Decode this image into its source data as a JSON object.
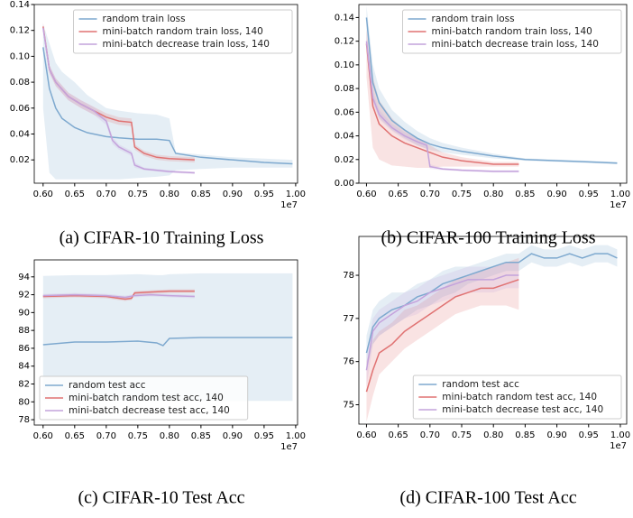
{
  "chart_data": [
    {
      "type": "line",
      "caption": "(a) CIFAR-10 Training Loss",
      "offset_label": "1e7",
      "legend": "upper right",
      "xlim": [
        0.586,
        1.003
      ],
      "ylim": [
        0.002,
        0.14
      ],
      "xticks": [
        {
          "value": 0.6,
          "label": "0.60"
        },
        {
          "value": 0.65,
          "label": "0.65"
        },
        {
          "value": 0.7,
          "label": "0.70"
        },
        {
          "value": 0.75,
          "label": "0.75"
        },
        {
          "value": 0.8,
          "label": "0.80"
        },
        {
          "value": 0.85,
          "label": "0.85"
        },
        {
          "value": 0.9,
          "label": "0.90"
        },
        {
          "value": 0.95,
          "label": "0.95"
        },
        {
          "value": 1.0,
          "label": "1.00"
        }
      ],
      "yticks": [
        0.02,
        0.04,
        0.06,
        0.08,
        {
          "value": 0.1,
          "label": "0.10"
        },
        0.12,
        0.14
      ],
      "series": [
        {
          "name": "random train loss",
          "color": "#7ea9cf",
          "x": [
            0.6,
            0.61,
            0.62,
            0.63,
            0.65,
            0.67,
            0.7,
            0.72,
            0.75,
            0.78,
            0.8,
            0.81,
            0.85,
            0.9,
            0.95,
            0.995
          ],
          "values": [
            0.107,
            0.075,
            0.06,
            0.052,
            0.045,
            0.041,
            0.038,
            0.037,
            0.036,
            0.036,
            0.035,
            0.025,
            0.022,
            0.02,
            0.018,
            0.017
          ],
          "upper": [
            0.125,
            0.11,
            0.095,
            0.088,
            0.08,
            0.07,
            0.06,
            0.058,
            0.056,
            0.055,
            0.052,
            0.026,
            0.024,
            0.022,
            0.021,
            0.02
          ],
          "lower": [
            0.06,
            0.01,
            0.005,
            0.005,
            0.005,
            0.005,
            0.005,
            0.005,
            0.006,
            0.007,
            0.008,
            0.012,
            0.013,
            0.014,
            0.014,
            0.014
          ]
        },
        {
          "name": "mini-batch random train loss, 140",
          "color": "#e07272",
          "x": [
            0.6,
            0.61,
            0.62,
            0.64,
            0.66,
            0.68,
            0.7,
            0.72,
            0.74,
            0.745,
            0.76,
            0.78,
            0.8,
            0.84
          ],
          "values": [
            0.123,
            0.09,
            0.08,
            0.069,
            0.063,
            0.058,
            0.053,
            0.05,
            0.049,
            0.03,
            0.025,
            0.022,
            0.021,
            0.02
          ],
          "upper": [
            0.126,
            0.093,
            0.083,
            0.072,
            0.066,
            0.061,
            0.056,
            0.053,
            0.052,
            0.032,
            0.027,
            0.024,
            0.023,
            0.022
          ],
          "lower": [
            0.12,
            0.087,
            0.077,
            0.066,
            0.06,
            0.055,
            0.05,
            0.047,
            0.046,
            0.028,
            0.023,
            0.02,
            0.019,
            0.018
          ]
        },
        {
          "name": "mini-batch decrease train loss, 140",
          "color": "#c4a3dc",
          "x": [
            0.6,
            0.61,
            0.62,
            0.64,
            0.66,
            0.68,
            0.7,
            0.71,
            0.72,
            0.74,
            0.745,
            0.76,
            0.8,
            0.84
          ],
          "values": [
            0.122,
            0.09,
            0.08,
            0.069,
            0.063,
            0.058,
            0.05,
            0.035,
            0.03,
            0.025,
            0.016,
            0.013,
            0.011,
            0.01
          ],
          "upper": [
            0.125,
            0.093,
            0.083,
            0.072,
            0.066,
            0.061,
            0.053,
            0.038,
            0.032,
            0.027,
            0.018,
            0.014,
            0.012,
            0.011
          ],
          "lower": [
            0.119,
            0.087,
            0.077,
            0.066,
            0.06,
            0.055,
            0.047,
            0.032,
            0.028,
            0.023,
            0.014,
            0.012,
            0.01,
            0.009
          ]
        }
      ]
    },
    {
      "type": "line",
      "caption": "(b) CIFAR-100 Training Loss",
      "offset_label": "1e7",
      "legend": "upper right",
      "xlim": [
        0.588,
        1.01
      ],
      "ylim": [
        0,
        0.151
      ],
      "xticks": [
        {
          "value": 0.6,
          "label": "0.60"
        },
        {
          "value": 0.65,
          "label": "0.65"
        },
        {
          "value": 0.7,
          "label": "0.70"
        },
        {
          "value": 0.75,
          "label": "0.75"
        },
        {
          "value": 0.8,
          "label": "0.80"
        },
        {
          "value": 0.85,
          "label": "0.85"
        },
        {
          "value": 0.9,
          "label": "0.90"
        },
        {
          "value": 0.95,
          "label": "0.95"
        },
        {
          "value": 1.0,
          "label": "1.00"
        }
      ],
      "yticks": [
        {
          "value": 0,
          "label": "0.00"
        },
        0.02,
        0.04,
        0.06,
        0.08,
        {
          "value": 0.1,
          "label": "0.10"
        },
        0.12,
        0.14
      ],
      "series": [
        {
          "name": "random train loss",
          "color": "#7ea9cf",
          "x": [
            0.6,
            0.61,
            0.62,
            0.64,
            0.66,
            0.68,
            0.7,
            0.72,
            0.75,
            0.8,
            0.85,
            0.9,
            0.95,
            0.995
          ],
          "values": [
            0.14,
            0.085,
            0.068,
            0.053,
            0.045,
            0.038,
            0.033,
            0.03,
            0.027,
            0.023,
            0.02,
            0.019,
            0.018,
            0.017
          ],
          "upper": [
            0.15,
            0.1,
            0.08,
            0.062,
            0.052,
            0.044,
            0.038,
            0.034,
            0.03,
            0.025,
            0.021,
            0.02,
            0.019,
            0.018
          ],
          "lower": [
            0.12,
            0.07,
            0.055,
            0.045,
            0.038,
            0.032,
            0.028,
            0.026,
            0.024,
            0.021,
            0.019,
            0.018,
            0.017,
            0.016
          ]
        },
        {
          "name": "mini-batch random train loss, 140",
          "color": "#e07272",
          "x": [
            0.6,
            0.61,
            0.62,
            0.64,
            0.66,
            0.68,
            0.7,
            0.72,
            0.75,
            0.8,
            0.84
          ],
          "values": [
            0.118,
            0.065,
            0.05,
            0.04,
            0.034,
            0.03,
            0.026,
            0.022,
            0.019,
            0.016,
            0.016
          ],
          "upper": [
            0.13,
            0.09,
            0.07,
            0.055,
            0.045,
            0.038,
            0.032,
            0.026,
            0.022,
            0.018,
            0.018
          ],
          "lower": [
            0.09,
            0.03,
            0.02,
            0.015,
            0.014,
            0.013,
            0.013,
            0.014,
            0.014,
            0.014,
            0.014
          ]
        },
        {
          "name": "mini-batch decrease train loss, 140",
          "color": "#c4a3dc",
          "x": [
            0.6,
            0.61,
            0.62,
            0.64,
            0.66,
            0.68,
            0.695,
            0.7,
            0.72,
            0.75,
            0.8,
            0.84
          ],
          "values": [
            0.12,
            0.072,
            0.058,
            0.047,
            0.04,
            0.035,
            0.032,
            0.014,
            0.012,
            0.011,
            0.01,
            0.01
          ],
          "upper": [
            0.126,
            0.077,
            0.062,
            0.05,
            0.043,
            0.038,
            0.035,
            0.016,
            0.013,
            0.012,
            0.011,
            0.011
          ],
          "lower": [
            0.114,
            0.067,
            0.054,
            0.044,
            0.037,
            0.032,
            0.029,
            0.012,
            0.011,
            0.01,
            0.009,
            0.009
          ]
        }
      ]
    },
    {
      "type": "line",
      "caption": "(c) CIFAR-10 Test Acc",
      "offset_label": "1e7",
      "legend": "lower left",
      "xlim": [
        0.586,
        1.003
      ],
      "ylim": [
        77.4,
        95.9
      ],
      "xticks": [
        {
          "value": 0.6,
          "label": "0.60"
        },
        {
          "value": 0.65,
          "label": "0.65"
        },
        {
          "value": 0.7,
          "label": "0.70"
        },
        {
          "value": 0.75,
          "label": "0.75"
        },
        {
          "value": 0.8,
          "label": "0.80"
        },
        {
          "value": 0.85,
          "label": "0.85"
        },
        {
          "value": 0.9,
          "label": "0.90"
        },
        {
          "value": 0.95,
          "label": "0.95"
        },
        {
          "value": 1.0,
          "label": "1.00"
        }
      ],
      "yticks": [
        78,
        80,
        82,
        84,
        86,
        88,
        90,
        92,
        94
      ],
      "series": [
        {
          "name": "random test acc",
          "color": "#7ea9cf",
          "x": [
            0.6,
            0.65,
            0.7,
            0.75,
            0.78,
            0.79,
            0.8,
            0.85,
            0.9,
            0.95,
            0.995
          ],
          "values": [
            86.4,
            86.7,
            86.7,
            86.8,
            86.6,
            86.3,
            87.1,
            87.2,
            87.2,
            87.2,
            87.2
          ],
          "upper": [
            94.1,
            94.2,
            94.2,
            94.3,
            94.2,
            94.2,
            94.3,
            94.4,
            94.4,
            94.4,
            94.4
          ],
          "lower": [
            80.2,
            80.2,
            80.2,
            80.1,
            80.1,
            80.1,
            80.1,
            80.1,
            80.1,
            80.1,
            80.1
          ]
        },
        {
          "name": "mini-batch random test acc, 140",
          "color": "#e07272",
          "x": [
            0.6,
            0.65,
            0.7,
            0.73,
            0.74,
            0.745,
            0.77,
            0.8,
            0.84
          ],
          "values": [
            91.8,
            91.9,
            91.8,
            91.5,
            91.6,
            92.2,
            92.3,
            92.4,
            92.4
          ],
          "upper": [
            92.0,
            92.1,
            92.0,
            91.7,
            91.8,
            92.4,
            92.5,
            92.6,
            92.6
          ],
          "lower": [
            91.6,
            91.7,
            91.6,
            91.3,
            91.4,
            92.0,
            92.1,
            92.2,
            92.2
          ]
        },
        {
          "name": "mini-batch decrease test acc, 140",
          "color": "#c4a3dc",
          "x": [
            0.6,
            0.65,
            0.7,
            0.73,
            0.745,
            0.77,
            0.8,
            0.84
          ],
          "values": [
            91.9,
            92.0,
            91.9,
            91.7,
            91.9,
            92.0,
            91.9,
            91.8
          ],
          "upper": [
            92.1,
            92.2,
            92.1,
            91.9,
            92.1,
            92.2,
            92.1,
            92.0
          ],
          "lower": [
            91.7,
            91.8,
            91.7,
            91.5,
            91.7,
            91.8,
            91.7,
            91.6
          ]
        }
      ]
    },
    {
      "type": "line",
      "caption": "(d) CIFAR-100 Test Acc",
      "offset_label": "1e7",
      "legend": "lower right",
      "xlim": [
        0.588,
        1.01
      ],
      "ylim": [
        74.55,
        78.9
      ],
      "xticks": [
        {
          "value": 0.6,
          "label": "0.60"
        },
        {
          "value": 0.65,
          "label": "0.65"
        },
        {
          "value": 0.7,
          "label": "0.70"
        },
        {
          "value": 0.75,
          "label": "0.75"
        },
        {
          "value": 0.8,
          "label": "0.80"
        },
        {
          "value": 0.85,
          "label": "0.85"
        },
        {
          "value": 0.9,
          "label": "0.90"
        },
        {
          "value": 0.95,
          "label": "0.95"
        },
        {
          "value": 1.0,
          "label": "1.00"
        }
      ],
      "yticks": [
        75,
        76,
        77,
        78
      ],
      "series": [
        {
          "name": "random test acc",
          "color": "#7ea9cf",
          "x": [
            0.6,
            0.61,
            0.62,
            0.64,
            0.66,
            0.68,
            0.7,
            0.72,
            0.74,
            0.76,
            0.78,
            0.8,
            0.82,
            0.84,
            0.85,
            0.86,
            0.88,
            0.9,
            0.92,
            0.94,
            0.96,
            0.98,
            0.995
          ],
          "values": [
            76.2,
            76.8,
            77.0,
            77.2,
            77.3,
            77.5,
            77.6,
            77.8,
            77.9,
            78.0,
            78.1,
            78.2,
            78.3,
            78.3,
            78.4,
            78.5,
            78.4,
            78.4,
            78.5,
            78.4,
            78.5,
            78.5,
            78.4
          ],
          "upper": [
            76.6,
            77.2,
            77.4,
            77.6,
            77.6,
            77.8,
            77.9,
            78.1,
            78.2,
            78.2,
            78.3,
            78.4,
            78.5,
            78.5,
            78.6,
            78.7,
            78.6,
            78.6,
            78.7,
            78.6,
            78.7,
            78.7,
            78.6
          ],
          "lower": [
            75.8,
            76.4,
            76.6,
            76.8,
            77.0,
            77.2,
            77.3,
            77.5,
            77.6,
            77.8,
            77.9,
            78.0,
            78.1,
            78.1,
            78.2,
            78.3,
            78.2,
            78.2,
            78.3,
            78.2,
            78.3,
            78.3,
            78.2
          ]
        },
        {
          "name": "mini-batch random test acc, 140",
          "color": "#e07272",
          "x": [
            0.6,
            0.61,
            0.62,
            0.64,
            0.66,
            0.68,
            0.7,
            0.72,
            0.74,
            0.76,
            0.78,
            0.8,
            0.82,
            0.84
          ],
          "values": [
            75.3,
            75.8,
            76.2,
            76.4,
            76.7,
            76.9,
            77.1,
            77.3,
            77.5,
            77.6,
            77.7,
            77.7,
            77.8,
            77.9
          ],
          "upper": [
            76.0,
            76.5,
            76.7,
            76.9,
            77.2,
            77.3,
            77.5,
            77.7,
            77.9,
            78.0,
            78.1,
            78.2,
            78.3,
            78.4
          ],
          "lower": [
            74.6,
            75.2,
            75.7,
            76.0,
            76.3,
            76.5,
            76.7,
            76.9,
            77.1,
            77.2,
            77.3,
            77.3,
            77.3,
            77.2
          ]
        },
        {
          "name": "mini-batch decrease test acc, 140",
          "color": "#c4a3dc",
          "x": [
            0.6,
            0.61,
            0.62,
            0.64,
            0.66,
            0.68,
            0.7,
            0.72,
            0.74,
            0.76,
            0.78,
            0.8,
            0.82,
            0.84
          ],
          "values": [
            75.8,
            76.7,
            76.9,
            77.1,
            77.3,
            77.4,
            77.6,
            77.7,
            77.8,
            77.9,
            77.9,
            77.9,
            78.0,
            78.0
          ],
          "upper": [
            76.2,
            77.0,
            77.2,
            77.4,
            77.6,
            77.7,
            77.9,
            78.0,
            78.1,
            78.2,
            78.2,
            78.2,
            78.3,
            78.3
          ],
          "lower": [
            75.4,
            76.4,
            76.6,
            76.8,
            77.0,
            77.1,
            77.3,
            77.4,
            77.5,
            77.6,
            77.6,
            77.6,
            77.7,
            77.7
          ]
        }
      ]
    }
  ]
}
